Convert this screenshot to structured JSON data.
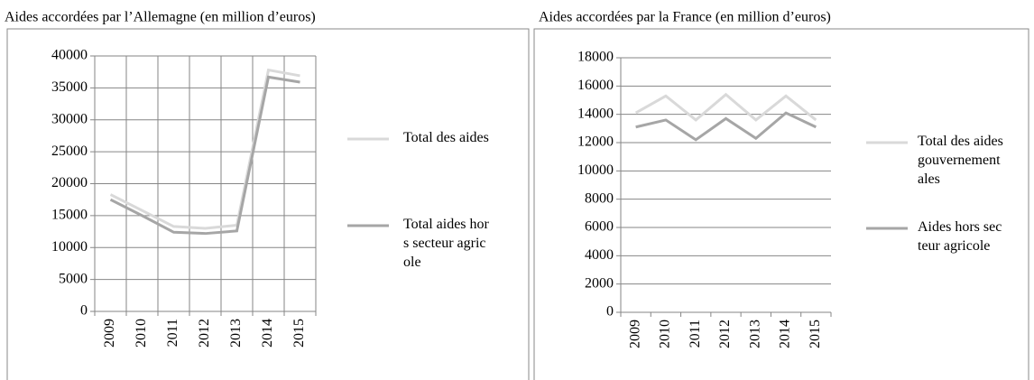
{
  "chart_data": [
    {
      "type": "line",
      "title": "Aides accordées par l’Allemagne (en million d’euros)",
      "categories": [
        "2009",
        "2010",
        "2011",
        "2012",
        "2013",
        "2014",
        "2015"
      ],
      "series": [
        {
          "name": "Total des aides",
          "color": "#d9d9d9",
          "values": [
            18300,
            15800,
            13300,
            13000,
            13500,
            37800,
            36900
          ]
        },
        {
          "name": "Total aides hors secteur agricole",
          "color": "#a6a6a6",
          "values": [
            17500,
            15000,
            12400,
            12200,
            12600,
            36700,
            35900
          ]
        }
      ],
      "ylim": [
        0,
        40000
      ],
      "yticks": [
        0,
        5000,
        10000,
        15000,
        20000,
        25000,
        30000,
        35000,
        40000
      ],
      "grid": true,
      "vgrid": true,
      "legend": "right"
    },
    {
      "type": "line",
      "title": "Aides accordées par la France (en million d’euros)",
      "categories": [
        "2009",
        "2010",
        "2011",
        "2012",
        "2013",
        "2014",
        "2015"
      ],
      "series": [
        {
          "name": "Total des aides gouvernementales",
          "color": "#d9d9d9",
          "values": [
            14100,
            15300,
            13600,
            15400,
            13600,
            15300,
            13600
          ]
        },
        {
          "name": "Aides hors secteur agricole",
          "color": "#a6a6a6",
          "values": [
            13100,
            13600,
            12200,
            13700,
            12300,
            14100,
            13100
          ]
        }
      ],
      "ylim": [
        0,
        18000
      ],
      "yticks": [
        0,
        2000,
        4000,
        6000,
        8000,
        10000,
        12000,
        14000,
        16000,
        18000
      ],
      "grid": true,
      "vgrid": false,
      "legend": "right"
    }
  ]
}
